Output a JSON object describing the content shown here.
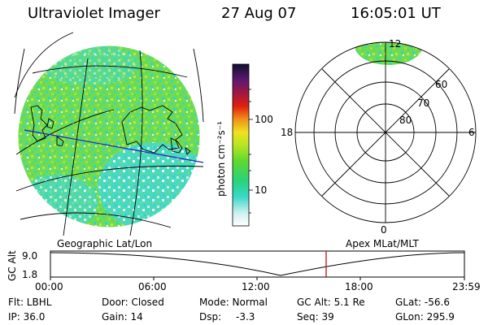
{
  "header": {
    "instrument": "Ultraviolet Imager",
    "date": "27 Aug 07",
    "time": "16:05:01 UT"
  },
  "colorbar": {
    "label": "photon cm⁻²s⁻¹",
    "ticks": [
      "100",
      "10"
    ]
  },
  "polar_plot": {
    "mlt_labels": {
      "top": "12",
      "left": "18",
      "right": "6",
      "bottom": "0"
    },
    "lat_labels": [
      "60",
      "70",
      "80"
    ]
  },
  "altitude_panel": {
    "left_caption": "Geographic Lat/Lon",
    "right_caption": "Apex MLat/MLT",
    "axis_label": "GC Alt",
    "y_ticks": [
      "9.0",
      "1.8"
    ],
    "x_ticks": [
      "00:00",
      "06:00",
      "12:00",
      "18:00",
      "23:59"
    ],
    "current_time_marker_color": "#b00000"
  },
  "info": {
    "filter": "Flt: LBHL",
    "door": "Door: Closed",
    "mode": "Mode: Normal",
    "gc_alt": "GC Alt: 5.1 Re",
    "glat": "GLat: -56.6",
    "ip": "IP: 36.0",
    "gain": "Gain: 14",
    "dsp_label": "Dsp:",
    "dsp_value": "-3.3",
    "seq": "Seq: 39",
    "glon": "GLon: 295.9"
  }
}
